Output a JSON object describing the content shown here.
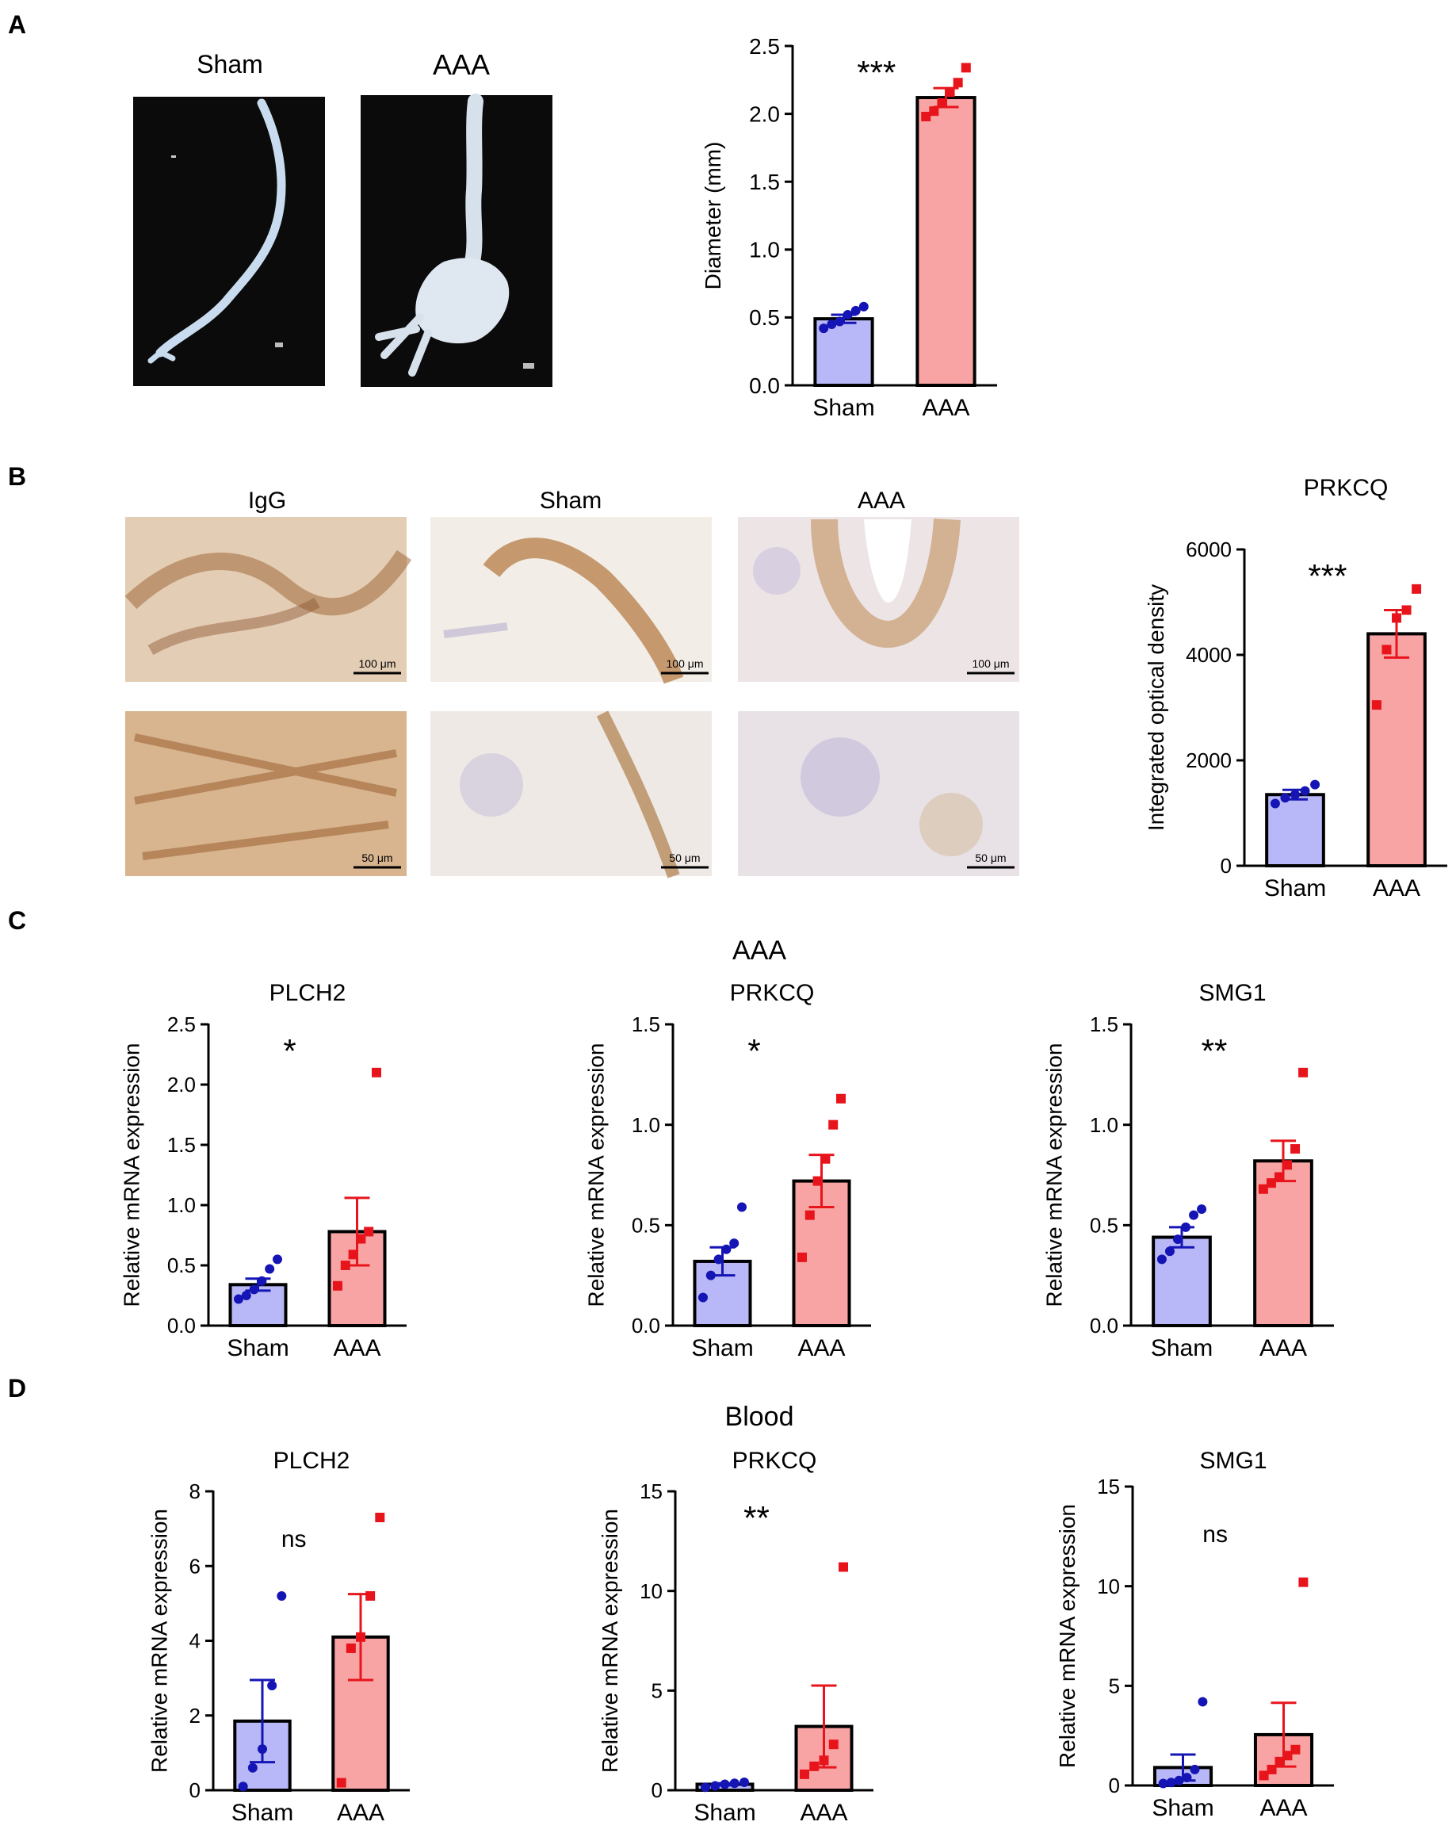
{
  "figure": {
    "panel_letters": [
      "A",
      "B",
      "C",
      "D"
    ],
    "section_titles": {
      "C": "AAA",
      "D": "Blood"
    },
    "colors": {
      "sham_fill": "#b8b8f8",
      "sham_point": "#1515b5",
      "sham_error": "#1515b5",
      "aaa_fill": "#f9a4a4",
      "aaa_point": "#e8141c",
      "aaa_error": "#e8141c",
      "stroke": "#000000"
    }
  },
  "photos_A": {
    "labels": [
      "Sham",
      "AAA"
    ]
  },
  "ihc_B": {
    "column_labels": [
      "IgG",
      "Sham",
      "AAA"
    ],
    "scalebar_top": "100 μm",
    "scalebar_bottom": "50 μm"
  },
  "chart_data": [
    {
      "id": "A_diameter",
      "type": "bar",
      "title": "",
      "xlabel": "",
      "ylabel": "Diameter (mm)",
      "ylim": [
        0,
        2.5
      ],
      "yticks": [
        "0.0",
        "0.5",
        "1.0",
        "1.5",
        "2.0",
        "2.5"
      ],
      "categories": [
        "Sham",
        "AAA"
      ],
      "values": [
        0.49,
        2.12
      ],
      "sem": [
        0.03,
        0.07
      ],
      "points": [
        [
          0.42,
          0.45,
          0.47,
          0.52,
          0.55,
          0.58
        ],
        [
          1.98,
          2.02,
          2.08,
          2.16,
          2.23,
          2.34
        ]
      ],
      "significance": "***"
    },
    {
      "id": "B_ihc_quant",
      "type": "bar",
      "title": "PRKCQ",
      "xlabel": "",
      "ylabel": "Integrated optical density",
      "ylim": [
        0,
        6000
      ],
      "yticks": [
        "0",
        "2000",
        "4000",
        "6000"
      ],
      "categories": [
        "Sham",
        "AAA"
      ],
      "values": [
        1350,
        4400
      ],
      "sem": [
        90,
        450
      ],
      "points": [
        [
          1180,
          1290,
          1350,
          1420,
          1540
        ],
        [
          3050,
          4100,
          4700,
          4850,
          5250
        ]
      ],
      "significance": "***"
    },
    {
      "id": "C_PLCH2",
      "type": "bar",
      "title": "PLCH2",
      "xlabel": "",
      "ylabel": "Relative mRNA expression",
      "ylim": [
        0,
        2.5
      ],
      "yticks": [
        "0.0",
        "0.5",
        "1.0",
        "1.5",
        "2.0",
        "2.5"
      ],
      "categories": [
        "Sham",
        "AAA"
      ],
      "values": [
        0.34,
        0.78
      ],
      "sem": [
        0.05,
        0.28
      ],
      "points": [
        [
          0.22,
          0.25,
          0.3,
          0.37,
          0.47,
          0.55
        ],
        [
          0.33,
          0.5,
          0.59,
          0.72,
          0.78,
          2.1
        ]
      ],
      "significance": "*"
    },
    {
      "id": "C_PRKCQ",
      "type": "bar",
      "title": "PRKCQ",
      "xlabel": "",
      "ylabel": "Relative mRNA expression",
      "ylim": [
        0,
        1.5
      ],
      "yticks": [
        "0.0",
        "0.5",
        "1.0",
        "1.5"
      ],
      "categories": [
        "Sham",
        "AAA"
      ],
      "values": [
        0.32,
        0.72
      ],
      "sem": [
        0.07,
        0.13
      ],
      "points": [
        [
          0.14,
          0.25,
          0.33,
          0.38,
          0.41,
          0.59
        ],
        [
          0.34,
          0.55,
          0.72,
          0.83,
          1.0,
          1.13
        ]
      ],
      "significance": "*"
    },
    {
      "id": "C_SMG1",
      "type": "bar",
      "title": "SMG1",
      "xlabel": "",
      "ylabel": "Relative mRNA expression",
      "ylim": [
        0,
        1.5
      ],
      "yticks": [
        "0.0",
        "0.5",
        "1.0",
        "1.5"
      ],
      "categories": [
        "Sham",
        "AAA"
      ],
      "values": [
        0.44,
        0.82
      ],
      "sem": [
        0.05,
        0.1
      ],
      "points": [
        [
          0.33,
          0.37,
          0.43,
          0.49,
          0.55,
          0.58
        ],
        [
          0.68,
          0.71,
          0.74,
          0.8,
          0.88,
          1.26
        ]
      ],
      "significance": "**"
    },
    {
      "id": "D_PLCH2",
      "type": "bar",
      "title": "PLCH2",
      "xlabel": "",
      "ylabel": "Relative mRNA expression",
      "ylim": [
        0,
        8
      ],
      "yticks": [
        "0",
        "2",
        "4",
        "6",
        "8"
      ],
      "categories": [
        "Sham",
        "AAA"
      ],
      "values": [
        1.85,
        4.1
      ],
      "sem": [
        1.1,
        1.15
      ],
      "points": [
        [
          0.1,
          0.6,
          1.1,
          2.8,
          5.2
        ],
        [
          0.2,
          3.8,
          4.1,
          5.2,
          7.3
        ]
      ],
      "significance": "ns"
    },
    {
      "id": "D_PRKCQ",
      "type": "bar",
      "title": "PRKCQ",
      "xlabel": "",
      "ylabel": "Relative mRNA expression",
      "ylim": [
        0,
        15
      ],
      "yticks": [
        "0",
        "5",
        "10",
        "15"
      ],
      "categories": [
        "Sham",
        "AAA"
      ],
      "values": [
        0.3,
        3.2
      ],
      "sem": [
        0.05,
        2.05
      ],
      "points": [
        [
          0.15,
          0.22,
          0.3,
          0.35,
          0.4
        ],
        [
          0.8,
          1.2,
          1.5,
          2.3,
          11.2
        ]
      ],
      "significance": "**"
    },
    {
      "id": "D_SMG1",
      "type": "bar",
      "title": "SMG1",
      "xlabel": "",
      "ylabel": "Relative mRNA expression",
      "ylim": [
        0,
        15
      ],
      "yticks": [
        "0",
        "5",
        "10",
        "15"
      ],
      "categories": [
        "Sham",
        "AAA"
      ],
      "values": [
        0.9,
        2.55
      ],
      "sem": [
        0.65,
        1.6
      ],
      "points": [
        [
          0.1,
          0.15,
          0.25,
          0.4,
          0.8,
          4.2
        ],
        [
          0.5,
          0.8,
          1.2,
          1.5,
          1.8,
          10.2
        ]
      ],
      "significance": "ns"
    }
  ]
}
